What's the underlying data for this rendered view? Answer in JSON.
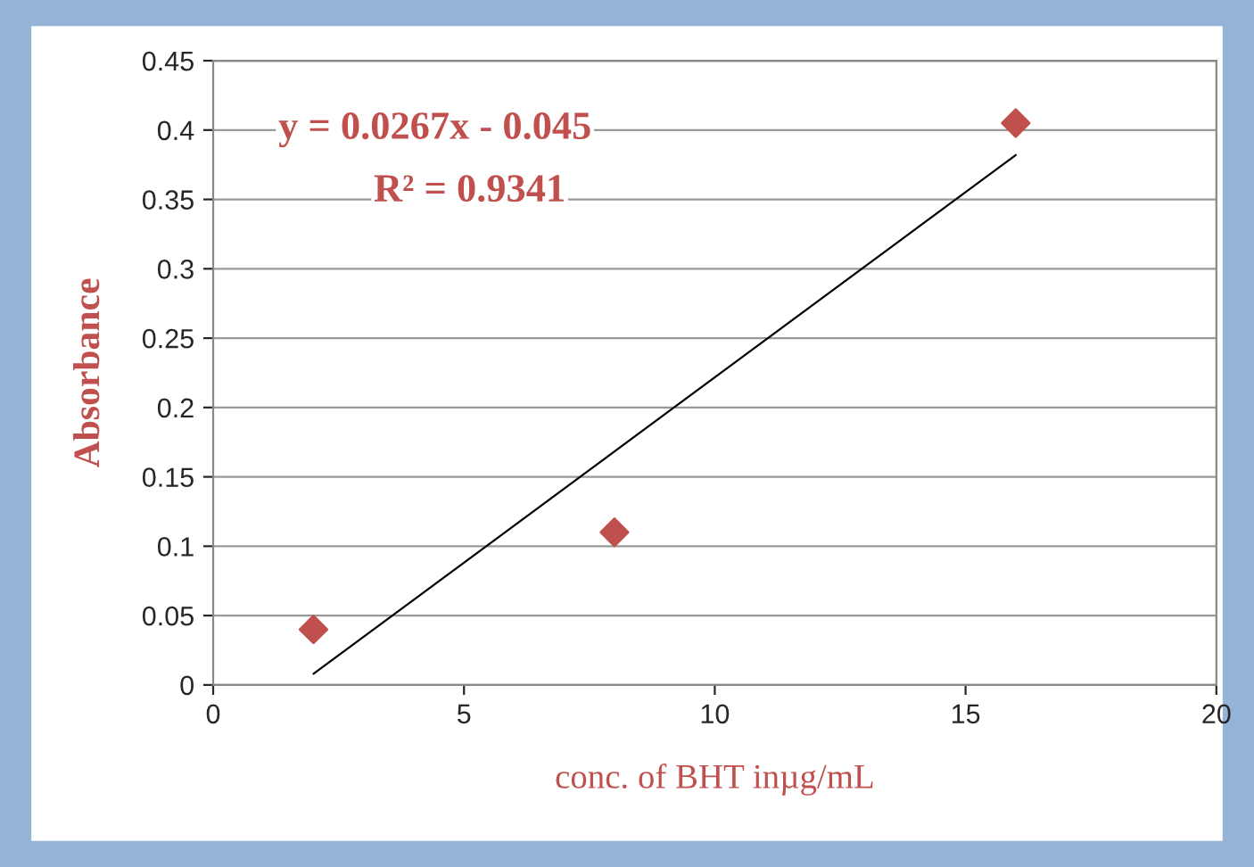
{
  "chart_data": {
    "type": "scatter",
    "xlabel": "conc. of BHT inµg/mL",
    "ylabel": "Absorbance",
    "annotations": [
      "y = 0.0267x - 0.045",
      "R² = 0.9341"
    ],
    "series": [
      {
        "color": "#c0504d",
        "x": [
          2,
          8,
          16
        ],
        "values": [
          0.04,
          0.11,
          0.405
        ],
        "marker": "diamond"
      },
      {
        "type": "line",
        "color": "#000000",
        "x": [
          2,
          16
        ],
        "values": [
          0.008,
          0.382
        ],
        "line_style": "solid"
      }
    ],
    "xlim": [
      0,
      20
    ],
    "xticks": [
      0,
      5,
      10,
      15,
      20
    ],
    "ylim": [
      0,
      0.45
    ],
    "yticks": [
      0,
      0.05,
      0.1,
      0.15,
      0.2,
      0.25,
      0.3,
      0.35,
      0.4,
      0.45
    ],
    "grid": "y",
    "legend": false
  }
}
